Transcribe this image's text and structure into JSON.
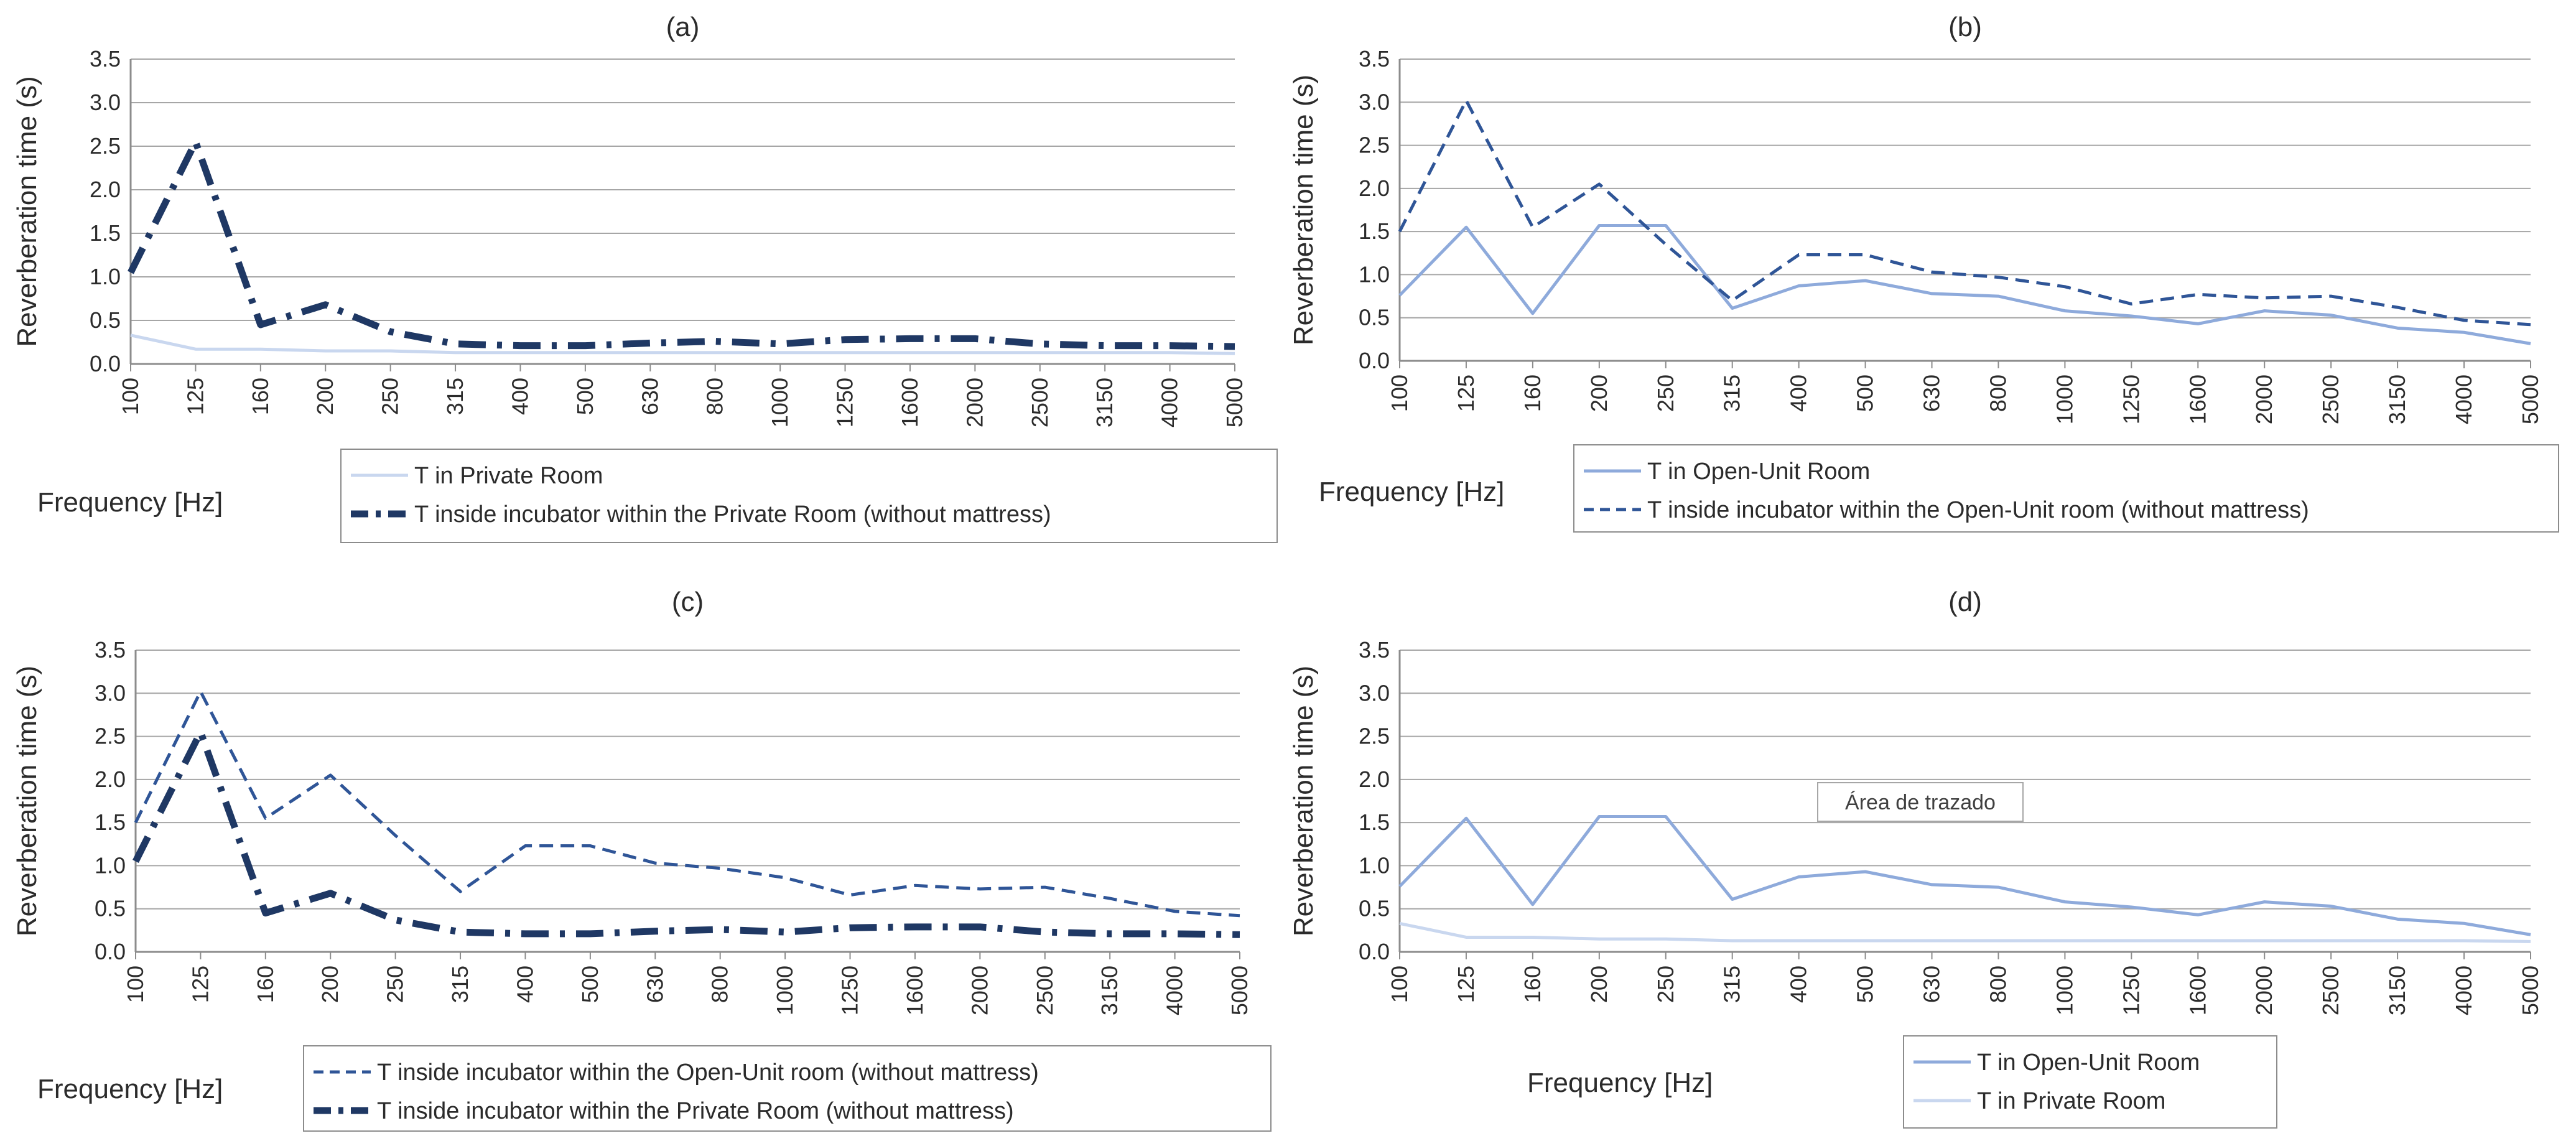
{
  "chart_data": [
    {
      "type": "line",
      "title": "(a)",
      "xlabel": "Frequency  [Hz]",
      "ylabel": "Reverberation time (s)",
      "ylim": [
        0,
        3.5
      ],
      "yticks": [
        "0.0",
        "0.5",
        "1.0",
        "1.5",
        "2.0",
        "2.5",
        "3.0",
        "3.5"
      ],
      "categories": [
        "100",
        "125",
        "160",
        "200",
        "250",
        "315",
        "400",
        "500",
        "630",
        "800",
        "1000",
        "1250",
        "1600",
        "2000",
        "2500",
        "3150",
        "4000",
        "5000"
      ],
      "series": [
        {
          "name": "T in Private Room",
          "color": "#c9d7ef",
          "dash": "solid",
          "width": 5,
          "values": [
            0.33,
            0.17,
            0.17,
            0.15,
            0.15,
            0.13,
            0.13,
            0.13,
            0.13,
            0.13,
            0.13,
            0.13,
            0.13,
            0.13,
            0.13,
            0.13,
            0.13,
            0.12
          ]
        },
        {
          "name": "T inside incubator within the Private Room (without mattress)",
          "color": "#1f3864",
          "dash": "dashdot",
          "width": 11,
          "values": [
            1.05,
            2.55,
            0.45,
            0.68,
            0.37,
            0.23,
            0.21,
            0.21,
            0.24,
            0.26,
            0.23,
            0.28,
            0.29,
            0.29,
            0.23,
            0.21,
            0.21,
            0.2
          ]
        }
      ],
      "legend": "bottom"
    },
    {
      "type": "line",
      "title": "(b)",
      "xlabel": "Frequency  [Hz]",
      "ylabel": "Reverberation time (s)",
      "ylim": [
        0,
        3.5
      ],
      "yticks": [
        "0.0",
        "0.5",
        "1.0",
        "1.5",
        "2.0",
        "2.5",
        "3.0",
        "3.5"
      ],
      "categories": [
        "100",
        "125",
        "160",
        "200",
        "250",
        "315",
        "400",
        "500",
        "630",
        "800",
        "1000",
        "1250",
        "1600",
        "2000",
        "2500",
        "3150",
        "4000",
        "5000"
      ],
      "series": [
        {
          "name": "T in Open-Unit Room",
          "color": "#8eaadb",
          "dash": "solid",
          "width": 5,
          "values": [
            0.76,
            1.55,
            0.55,
            1.57,
            1.57,
            0.61,
            0.87,
            0.93,
            0.78,
            0.75,
            0.58,
            0.52,
            0.43,
            0.58,
            0.53,
            0.38,
            0.33,
            0.2
          ]
        },
        {
          "name": "T inside incubator within the Open-Unit room (without mattress)",
          "color": "#2f5597",
          "dash": "dash",
          "width": 5,
          "values": [
            1.5,
            3.02,
            1.55,
            2.05,
            1.35,
            0.7,
            1.23,
            1.23,
            1.03,
            0.97,
            0.86,
            0.66,
            0.77,
            0.73,
            0.75,
            0.62,
            0.47,
            0.42
          ]
        }
      ],
      "legend": "bottom"
    },
    {
      "type": "line",
      "title": "(c)",
      "xlabel": "Frequency  [Hz]",
      "ylabel": "Reverberation time (s)",
      "ylim": [
        0,
        3.5
      ],
      "yticks": [
        "0.0",
        "0.5",
        "1.0",
        "1.5",
        "2.0",
        "2.5",
        "3.0",
        "3.5"
      ],
      "categories": [
        "100",
        "125",
        "160",
        "200",
        "250",
        "315",
        "400",
        "500",
        "630",
        "800",
        "1000",
        "1250",
        "1600",
        "2000",
        "2500",
        "3150",
        "4000",
        "5000"
      ],
      "series": [
        {
          "name": "T inside incubator within the Open-Unit room (without mattress)",
          "color": "#2f5597",
          "dash": "dash",
          "width": 5,
          "values": [
            1.5,
            3.02,
            1.55,
            2.05,
            1.35,
            0.7,
            1.23,
            1.23,
            1.03,
            0.97,
            0.86,
            0.66,
            0.77,
            0.73,
            0.75,
            0.62,
            0.47,
            0.42
          ]
        },
        {
          "name": "T inside incubator within the Private Room (without mattress)",
          "color": "#1f3864",
          "dash": "dashdot",
          "width": 11,
          "values": [
            1.05,
            2.55,
            0.45,
            0.68,
            0.37,
            0.23,
            0.21,
            0.21,
            0.24,
            0.26,
            0.23,
            0.28,
            0.29,
            0.29,
            0.23,
            0.21,
            0.21,
            0.2
          ]
        }
      ],
      "legend": "bottom"
    },
    {
      "type": "line",
      "title": "(d)",
      "xlabel": "Frequency  [Hz]",
      "ylabel": "Reverberation time (s)",
      "ylim": [
        0,
        3.5
      ],
      "yticks": [
        "0.0",
        "0.5",
        "1.0",
        "1.5",
        "2.0",
        "2.5",
        "3.0",
        "3.5"
      ],
      "categories": [
        "100",
        "125",
        "160",
        "200",
        "250",
        "315",
        "400",
        "500",
        "630",
        "800",
        "1000",
        "1250",
        "1600",
        "2000",
        "2500",
        "3150",
        "4000",
        "5000"
      ],
      "series": [
        {
          "name": "T in Open-Unit Room",
          "color": "#8eaadb",
          "dash": "solid",
          "width": 5,
          "values": [
            0.76,
            1.55,
            0.55,
            1.57,
            1.57,
            0.61,
            0.87,
            0.93,
            0.78,
            0.75,
            0.58,
            0.52,
            0.43,
            0.58,
            0.53,
            0.38,
            0.33,
            0.2
          ]
        },
        {
          "name": "T in Private Room",
          "color": "#c9d7ef",
          "dash": "solid",
          "width": 5,
          "values": [
            0.33,
            0.17,
            0.17,
            0.15,
            0.15,
            0.13,
            0.13,
            0.13,
            0.13,
            0.13,
            0.13,
            0.13,
            0.13,
            0.13,
            0.13,
            0.13,
            0.13,
            0.12
          ]
        }
      ],
      "legend": "bottom",
      "annotation": "Área de trazado"
    }
  ]
}
